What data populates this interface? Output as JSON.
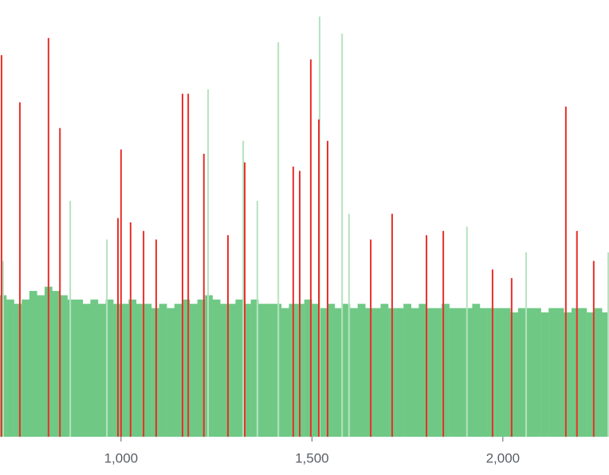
{
  "chart_data": {
    "type": "bar",
    "xlim": [
      683,
      2278
    ],
    "ylim": [
      0,
      100
    ],
    "xticks": [
      {
        "value": 1000,
        "label": "1,000"
      },
      {
        "value": 1500,
        "label": "1,500"
      },
      {
        "value": 2000,
        "label": "2,000"
      }
    ],
    "series": [
      {
        "color": "#6fc985",
        "x": [
          690,
          710,
          730,
          750,
          770,
          790,
          810,
          830,
          850,
          870,
          890,
          910,
          930,
          950,
          970,
          990,
          1010,
          1030,
          1050,
          1070,
          1090,
          1110,
          1130,
          1150,
          1170,
          1190,
          1210,
          1230,
          1250,
          1270,
          1290,
          1310,
          1330,
          1350,
          1370,
          1390,
          1410,
          1430,
          1450,
          1470,
          1490,
          1510,
          1530,
          1550,
          1570,
          1590,
          1610,
          1630,
          1650,
          1670,
          1690,
          1710,
          1730,
          1750,
          1770,
          1790,
          1810,
          1830,
          1850,
          1870,
          1890,
          1910,
          1930,
          1950,
          1970,
          1990,
          2010,
          2030,
          2050,
          2070,
          2090,
          2110,
          2130,
          2150,
          2170,
          2190,
          2210,
          2230,
          2250,
          2270
        ],
        "values": [
          33,
          32,
          31,
          32,
          34,
          33,
          35,
          34,
          33,
          32,
          32,
          31,
          32,
          31,
          32,
          31,
          31,
          32,
          31,
          31,
          30,
          31,
          30,
          31,
          32,
          31,
          32,
          33,
          32,
          31,
          31,
          32,
          31,
          32,
          31,
          31,
          31,
          30,
          31,
          31,
          32,
          31,
          30,
          31,
          30,
          31,
          30,
          31,
          30,
          30,
          31,
          30,
          30,
          31,
          30,
          31,
          30,
          30,
          31,
          30,
          30,
          30,
          31,
          30,
          30,
          30,
          30,
          29,
          30,
          30,
          30,
          29,
          30,
          30,
          29,
          30,
          30,
          29,
          30,
          29
        ]
      },
      {
        "color": "#b6e2bf",
        "x": [
          691,
          867,
          963,
          1228,
          1320,
          1357,
          1412,
          1520,
          1579,
          1597,
          1906,
          2061,
          2276
        ],
        "values": [
          41,
          55,
          46,
          81,
          69,
          55,
          92,
          98,
          94,
          52,
          49,
          43,
          43
        ]
      },
      {
        "color": "#e8302a",
        "x": [
          687,
          735,
          810,
          840,
          992,
          1000,
          1025,
          1059,
          1092,
          1161,
          1176,
          1217,
          1280,
          1324,
          1451,
          1468,
          1497,
          1518,
          1541,
          1654,
          1710,
          1800,
          1844,
          1973,
          2023,
          2165,
          2194,
          2238
        ],
        "values": [
          89,
          78,
          93,
          72,
          51,
          67,
          50,
          48,
          46,
          80,
          80,
          66,
          47,
          64,
          63,
          62,
          88,
          74,
          69,
          46,
          52,
          47,
          48,
          39,
          37,
          77,
          48,
          41
        ]
      }
    ]
  }
}
